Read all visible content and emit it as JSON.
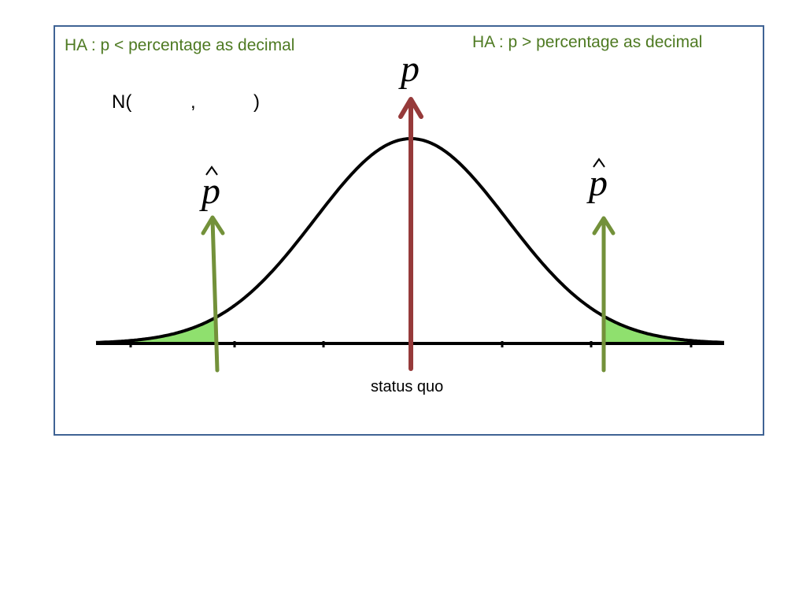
{
  "hypotheses": {
    "left": "HA : p < percentage as decimal",
    "right": "HA : p > percentage as decimal"
  },
  "normal_notation": {
    "prefix": "N(",
    "separator": ",",
    "suffix": ")"
  },
  "labels": {
    "population_parameter": "p",
    "sample_statistic": "p",
    "status_quo": "status quo"
  },
  "colors": {
    "frame_border": "#3f6394",
    "hypothesis_text": "#4e7a22",
    "center_arrow": "#963a3a",
    "side_arrow": "#73913a",
    "tail_fill": "#8fe06e",
    "curve": "#000000"
  }
}
